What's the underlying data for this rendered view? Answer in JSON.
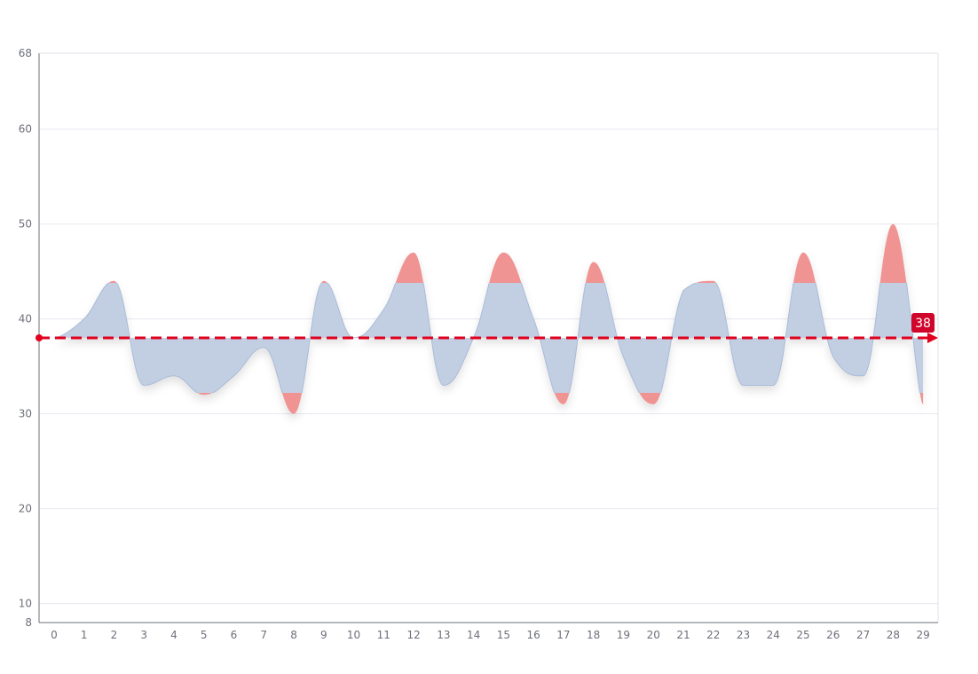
{
  "chart_data": {
    "type": "area",
    "title": "",
    "xlabel": "",
    "ylabel": "",
    "categories": [
      "0",
      "1",
      "2",
      "3",
      "4",
      "5",
      "6",
      "7",
      "8",
      "9",
      "10",
      "11",
      "12",
      "13",
      "14",
      "15",
      "16",
      "17",
      "18",
      "19",
      "20",
      "21",
      "22",
      "23",
      "24",
      "25",
      "26",
      "27",
      "28",
      "29"
    ],
    "series": [
      {
        "values": [
          38,
          40,
          44,
          33,
          34,
          32,
          34,
          37,
          30,
          44,
          38,
          41,
          47,
          33,
          38,
          47,
          40,
          31,
          46,
          36,
          31,
          43,
          44,
          33,
          33,
          47,
          36,
          34,
          50,
          31
        ]
      }
    ],
    "ylim": [
      8,
      68
    ],
    "y_ticks": [
      "68",
      "60",
      "50",
      "40",
      "30",
      "20",
      "10",
      "8"
    ],
    "y_tick_values": [
      68,
      60,
      50,
      40,
      30,
      20,
      10,
      8
    ],
    "grid": true,
    "band": {
      "lower": 32.2,
      "upper": 43.8
    },
    "mark_line": {
      "value": 38,
      "label": "38"
    },
    "colors": {
      "area_in_band": "#c2cfe2",
      "area_out_band": "#f09393",
      "line": "#a9bbd8",
      "mark_line": "#e1001e",
      "mark_label_bg": "#d0052c",
      "grid": "#e6e8ef",
      "axis": "#6e7079"
    }
  }
}
